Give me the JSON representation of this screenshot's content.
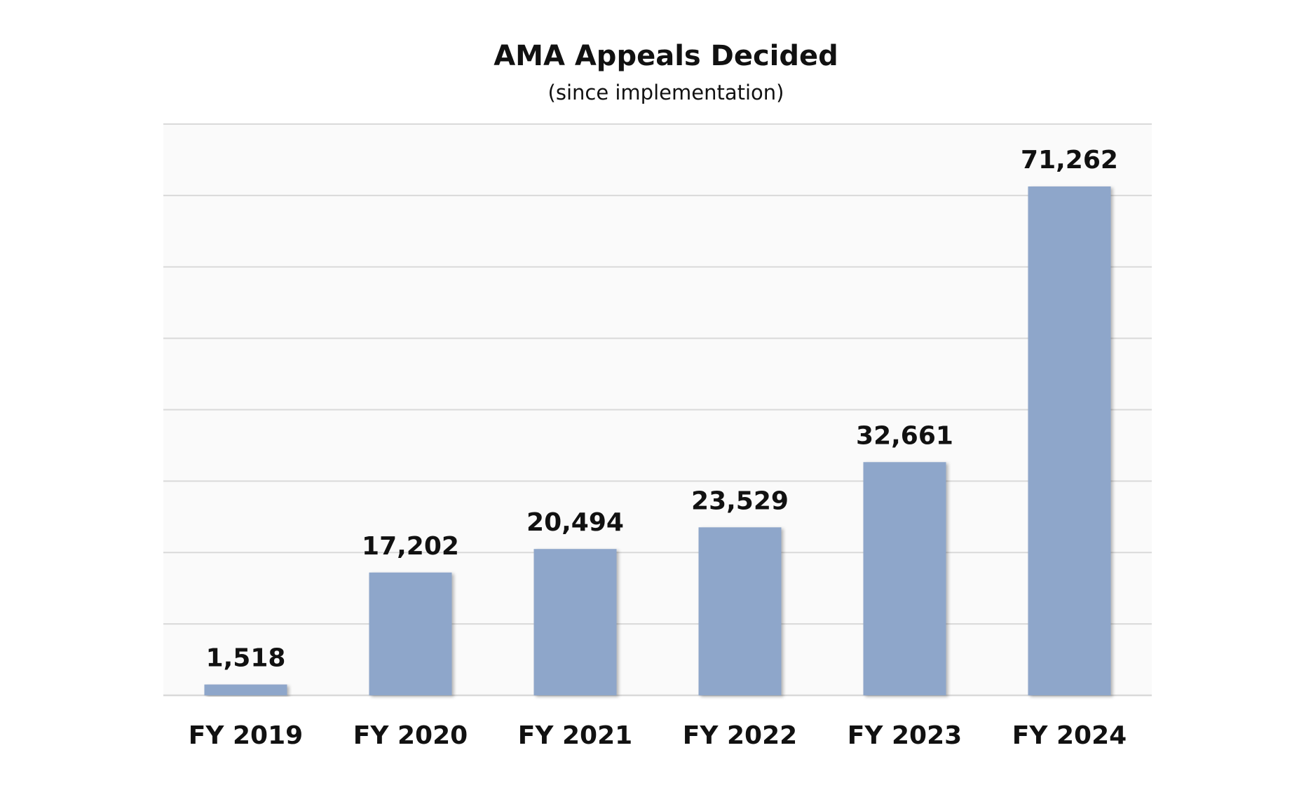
{
  "chart_data": {
    "type": "bar",
    "title": "AMA Appeals Decided",
    "subtitle": "(since implementation)",
    "categories": [
      "FY 2019",
      "FY 2020",
      "FY 2021",
      "FY 2022",
      "FY 2023",
      "FY 2024"
    ],
    "values": [
      1518,
      17202,
      20494,
      23529,
      32661,
      71262
    ],
    "value_labels": [
      "1,518",
      "17,202",
      "20,494",
      "23,529",
      "32,661",
      "71,262"
    ],
    "xlabel": "",
    "ylabel": "",
    "ylim": [
      0,
      80000
    ],
    "grid": true,
    "legend": "none",
    "colors": {
      "bar": "#8ea6ca",
      "plot_background": "#fafafa",
      "gridline": "#d9d9d9",
      "text": "#111111"
    }
  }
}
